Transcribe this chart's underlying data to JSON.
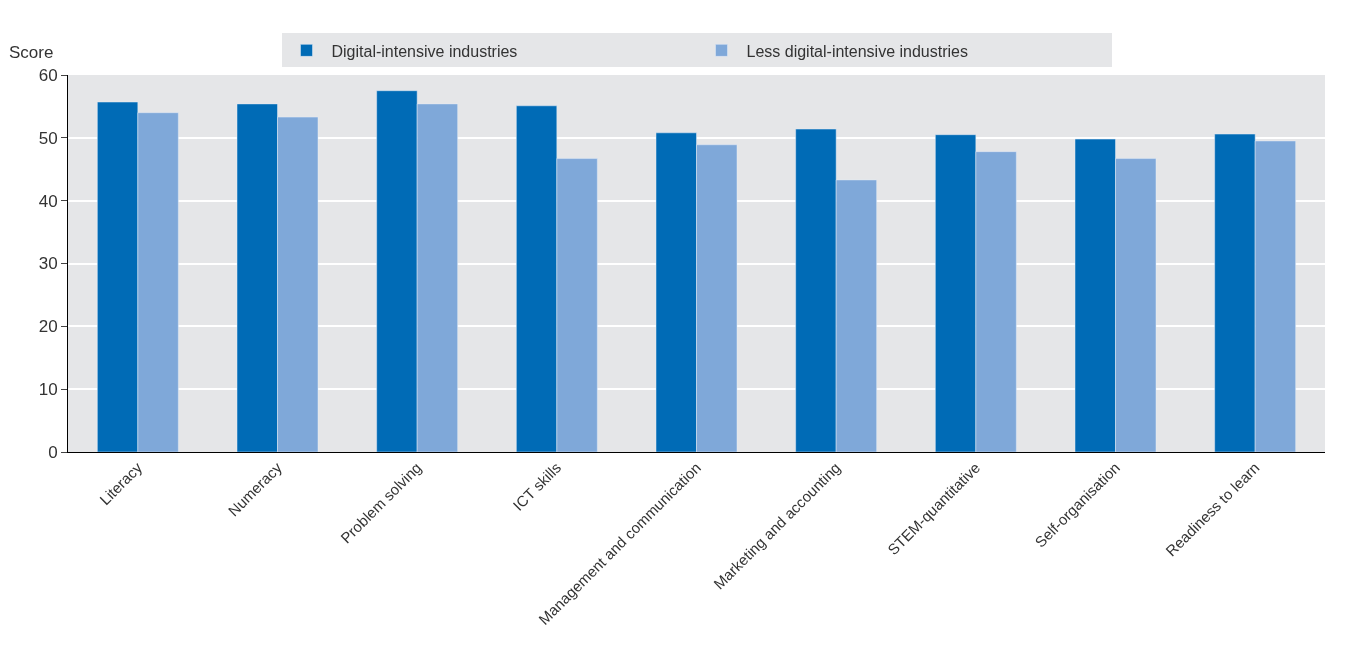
{
  "chart_data": {
    "type": "bar",
    "ylabel": "Score",
    "categories": [
      "Literacy",
      "Numeracy",
      "Problem solving",
      "ICT skills",
      "Management and communication",
      "Marketing and accounting",
      "STEM-quantitative",
      "Self-organisation",
      "Readiness to learn"
    ],
    "series": [
      {
        "name": "Digital-intensive industries",
        "color": "#006bb6",
        "values": [
          55.7,
          55.4,
          57.5,
          55.1,
          50.8,
          51.4,
          50.5,
          49.8,
          50.6
        ]
      },
      {
        "name": "Less digital-intensive industries",
        "color": "#7fa8d9",
        "values": [
          54.0,
          53.3,
          55.4,
          46.7,
          48.9,
          43.3,
          47.8,
          46.7,
          49.5
        ]
      }
    ],
    "ylim": [
      0,
      60
    ],
    "yticks": [
      0,
      10,
      20,
      30,
      40,
      50,
      60
    ],
    "grid": "y",
    "legend": "top"
  }
}
